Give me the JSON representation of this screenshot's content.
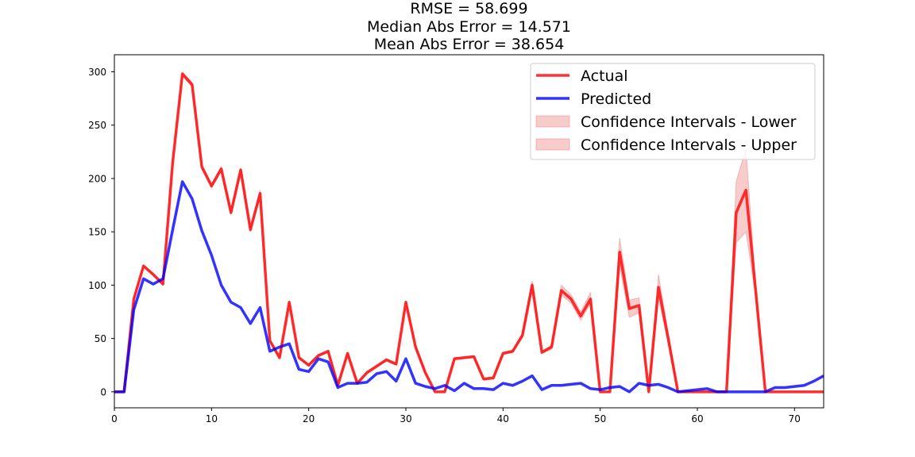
{
  "chart_data": {
    "type": "line",
    "title_lines": [
      "RMSE = 58.699",
      "Median Abs Error = 14.571",
      "Mean Abs Error = 38.654"
    ],
    "xlabel": "",
    "ylabel": "",
    "xlim": [
      0,
      73
    ],
    "ylim": [
      -15,
      316
    ],
    "x_ticks": [
      0,
      10,
      20,
      30,
      40,
      50,
      60,
      70
    ],
    "y_ticks": [
      0,
      50,
      100,
      150,
      200,
      250,
      300
    ],
    "legend_position": "top-right",
    "grid": false,
    "x": [
      0,
      1,
      2,
      3,
      4,
      5,
      6,
      7,
      8,
      9,
      10,
      11,
      12,
      13,
      14,
      15,
      16,
      17,
      18,
      19,
      20,
      21,
      22,
      23,
      24,
      25,
      26,
      27,
      28,
      29,
      30,
      31,
      32,
      33,
      34,
      35,
      36,
      37,
      38,
      39,
      40,
      41,
      42,
      43,
      44,
      45,
      46,
      47,
      48,
      49,
      50,
      51,
      52,
      53,
      54,
      55,
      56,
      57,
      58,
      59,
      60,
      61,
      62,
      63,
      64,
      65,
      66,
      67,
      68,
      69,
      70,
      71,
      72,
      73
    ],
    "series": [
      {
        "name": "Actual",
        "color": "#ff0000",
        "values": [
          0,
          0,
          87,
          118,
          110,
          101,
          215,
          298,
          288,
          211,
          193,
          209,
          168,
          208,
          152,
          186,
          48,
          32,
          84,
          32,
          25,
          34,
          38,
          6,
          36,
          8,
          18,
          24,
          30,
          26,
          84,
          42,
          18,
          0,
          0,
          31,
          32,
          33,
          12,
          13,
          36,
          38,
          53,
          100,
          37,
          42,
          95,
          87,
          71,
          87,
          0,
          0,
          131,
          78,
          81,
          0,
          98,
          50,
          0,
          0,
          0,
          0,
          0,
          0,
          168,
          189,
          95,
          0,
          0,
          0,
          0,
          0,
          0,
          0
        ]
      },
      {
        "name": "Predicted",
        "color": "#0000ff",
        "values": [
          0,
          0,
          77,
          106,
          101,
          106,
          152,
          197,
          181,
          151,
          128,
          100,
          84,
          79,
          64,
          79,
          38,
          42,
          45,
          21,
          19,
          31,
          28,
          4,
          8,
          8,
          9,
          17,
          19,
          10,
          31,
          8,
          5,
          3,
          6,
          1,
          8,
          3,
          3,
          2,
          8,
          6,
          10,
          15,
          2,
          6,
          6,
          7,
          8,
          3,
          2,
          4,
          5,
          0,
          8,
          6,
          7,
          4,
          0,
          1,
          2,
          3,
          0,
          0,
          0,
          0,
          0,
          0,
          4,
          4,
          5,
          6,
          10,
          15
        ]
      }
    ],
    "confidence_intervals": [
      {
        "name": "Confidence Intervals - Lower",
        "color": "#f08080",
        "lower": [
          0,
          0,
          86,
          117,
          109,
          100,
          213,
          296,
          286,
          209,
          191,
          207,
          166,
          206,
          150,
          183,
          47,
          31,
          83,
          31,
          24,
          33,
          37,
          5,
          35,
          7,
          17,
          23,
          29,
          25,
          83,
          41,
          17,
          0,
          0,
          30,
          31,
          32,
          11,
          12,
          35,
          37,
          51,
          97,
          36,
          40,
          91,
          83,
          67,
          83,
          0,
          0,
          118,
          70,
          74,
          0,
          88,
          45,
          0,
          0,
          0,
          0,
          0,
          0,
          140,
          150,
          90,
          0,
          0,
          0,
          0,
          0,
          0,
          0
        ],
        "upper": [
          0,
          0,
          88,
          119,
          111,
          102,
          217,
          300,
          290,
          213,
          195,
          211,
          170,
          210,
          154,
          189,
          49,
          33,
          85,
          33,
          26,
          35,
          39,
          7,
          37,
          9,
          19,
          25,
          31,
          27,
          85,
          43,
          19,
          0,
          0,
          32,
          33,
          34,
          13,
          14,
          37,
          39,
          55,
          104,
          38,
          44,
          100,
          91,
          75,
          93,
          0,
          0,
          144,
          86,
          88,
          0,
          110,
          55,
          0,
          0,
          0,
          0,
          0,
          0,
          197,
          228,
          100,
          0,
          0,
          0,
          0,
          0,
          0,
          0
        ]
      },
      {
        "name": "Confidence Intervals - Upper",
        "color": "#f08080"
      }
    ]
  }
}
